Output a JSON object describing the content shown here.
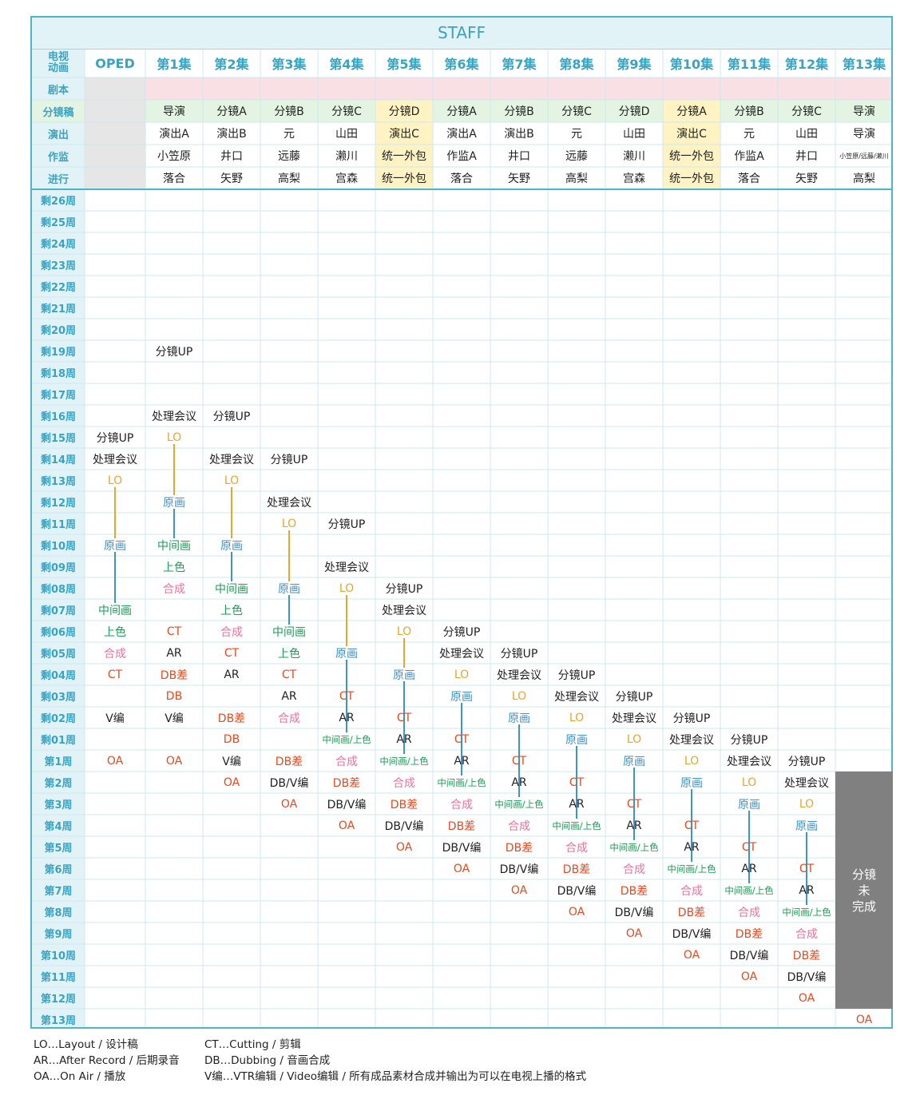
{
  "title": "STAFF",
  "corner": [
    "电视",
    "动画"
  ],
  "columns": [
    "OPED",
    "第1集",
    "第2集",
    "第3集",
    "第4集",
    "第5集",
    "第6集",
    "第7集",
    "第8集",
    "第9集",
    "第10集",
    "第11集",
    "第12集",
    "第13集"
  ],
  "info_rows": [
    {
      "label": "剧本",
      "cells": [
        "",
        "",
        "",
        "",
        "",
        "",
        "",
        "",
        "",
        "",
        "",
        "",
        "",
        ""
      ]
    },
    {
      "label": "分镜稿",
      "cells": [
        "",
        "导演",
        "分镜A",
        "分镜B",
        "分镜C",
        "分镜D",
        "分镜A",
        "分镜B",
        "分镜C",
        "分镜D",
        "分镜A",
        "分镜B",
        "分镜C",
        "导演"
      ]
    },
    {
      "label": "演出",
      "cells": [
        "",
        "演出A",
        "演出B",
        "元",
        "山田",
        "演出C",
        "演出A",
        "演出B",
        "元",
        "山田",
        "演出C",
        "元",
        "山田",
        "导演"
      ]
    },
    {
      "label": "作监",
      "cells": [
        "",
        "小笠原",
        "井口",
        "远藤",
        "濑川",
        "统一外包",
        "作监A",
        "井口",
        "远藤",
        "濑川",
        "统一外包",
        "作监A",
        "井口",
        "小笠原/远藤/濑川"
      ]
    },
    {
      "label": "进行",
      "cells": [
        "",
        "落合",
        "矢野",
        "高梨",
        "宫森",
        "统一外包",
        "落合",
        "矢野",
        "高梨",
        "宫森",
        "统一外包",
        "落合",
        "矢野",
        "高梨"
      ]
    }
  ],
  "weeks": [
    "剩26周",
    "剩25周",
    "剩24周",
    "剩23周",
    "剩22周",
    "剩21周",
    "剩20周",
    "剩19周",
    "剩18周",
    "剩17周",
    "剩16周",
    "剩15周",
    "剩14周",
    "剩13周",
    "剩12周",
    "剩11周",
    "剩10周",
    "剩09周",
    "剩08周",
    "剩07周",
    "剩06周",
    "剩05周",
    "剩04周",
    "剩03周",
    "剩02周",
    "剩01周",
    "第1周",
    "第2周",
    "第3周",
    "第4周",
    "第5周",
    "第6周",
    "第7周",
    "第8周",
    "第9周",
    "第10周",
    "第11周",
    "第12周",
    "第13周"
  ],
  "schedule": [
    {
      "col": 0,
      "marks": [
        [
          11,
          "分镜UP"
        ],
        [
          12,
          "处理会议"
        ],
        [
          13,
          "LO"
        ],
        [
          16,
          "原画"
        ],
        [
          19,
          "中间画"
        ],
        [
          20,
          "上色"
        ],
        [
          21,
          "合成"
        ],
        [
          22,
          "CT"
        ],
        [
          24,
          "V编"
        ],
        [
          26,
          "OA"
        ]
      ]
    },
    {
      "col": 1,
      "marks": [
        [
          7,
          "分镜UP"
        ],
        [
          10,
          "处理会议"
        ],
        [
          11,
          "LO"
        ],
        [
          14,
          "原画"
        ],
        [
          16,
          "中间画"
        ],
        [
          17,
          "上色"
        ],
        [
          18,
          "合成"
        ],
        [
          20,
          "CT"
        ],
        [
          21,
          "AR"
        ],
        [
          22,
          "DB差"
        ],
        [
          23,
          "DB"
        ],
        [
          24,
          "V编"
        ],
        [
          26,
          "OA"
        ]
      ]
    },
    {
      "col": 2,
      "marks": [
        [
          10,
          "分镜UP"
        ],
        [
          12,
          "处理会议"
        ],
        [
          13,
          "LO"
        ],
        [
          16,
          "原画"
        ],
        [
          18,
          "中间画"
        ],
        [
          19,
          "上色"
        ],
        [
          20,
          "合成"
        ],
        [
          21,
          "CT"
        ],
        [
          22,
          "AR"
        ],
        [
          24,
          "DB差"
        ],
        [
          25,
          "DB"
        ],
        [
          26,
          "V编"
        ],
        [
          27,
          "OA"
        ]
      ]
    },
    {
      "col": 3,
      "marks": [
        [
          12,
          "分镜UP"
        ],
        [
          14,
          "处理会议"
        ],
        [
          15,
          "LO"
        ],
        [
          18,
          "原画"
        ],
        [
          20,
          "中间画"
        ],
        [
          21,
          "上色"
        ],
        [
          22,
          "CT"
        ],
        [
          23,
          "AR"
        ],
        [
          24,
          "合成"
        ],
        [
          26,
          "DB差"
        ],
        [
          27,
          "DB/V编"
        ],
        [
          28,
          "OA"
        ]
      ]
    },
    {
      "col": 4,
      "marks": [
        [
          15,
          "分镜UP"
        ],
        [
          17,
          "处理会议"
        ],
        [
          18,
          "LO"
        ],
        [
          21,
          "原画"
        ],
        [
          23,
          "CT"
        ],
        [
          24,
          "AR"
        ],
        [
          25,
          "中间画/上色"
        ],
        [
          26,
          "合成"
        ],
        [
          27,
          "DB差"
        ],
        [
          28,
          "DB/V编"
        ],
        [
          29,
          "OA"
        ]
      ]
    },
    {
      "col": 5,
      "marks": [
        [
          18,
          "分镜UP"
        ],
        [
          19,
          "处理会议"
        ],
        [
          20,
          "LO"
        ],
        [
          22,
          "原画"
        ],
        [
          24,
          "CT"
        ],
        [
          25,
          "AR"
        ],
        [
          26,
          "中间画/上色"
        ],
        [
          27,
          "合成"
        ],
        [
          28,
          "DB差"
        ],
        [
          29,
          "DB/V编"
        ],
        [
          30,
          "OA"
        ]
      ]
    },
    {
      "col": 6,
      "marks": [
        [
          20,
          "分镜UP"
        ],
        [
          21,
          "处理会议"
        ],
        [
          22,
          "LO"
        ],
        [
          23,
          "原画"
        ],
        [
          25,
          "CT"
        ],
        [
          26,
          "AR"
        ],
        [
          27,
          "中间画/上色"
        ],
        [
          28,
          "合成"
        ],
        [
          29,
          "DB差"
        ],
        [
          30,
          "DB/V编"
        ],
        [
          31,
          "OA"
        ]
      ]
    },
    {
      "col": 7,
      "marks": [
        [
          21,
          "分镜UP"
        ],
        [
          22,
          "处理会议"
        ],
        [
          23,
          "LO"
        ],
        [
          24,
          "原画"
        ],
        [
          26,
          "CT"
        ],
        [
          27,
          "AR"
        ],
        [
          28,
          "中间画/上色"
        ],
        [
          29,
          "合成"
        ],
        [
          30,
          "DB差"
        ],
        [
          31,
          "DB/V编"
        ],
        [
          32,
          "OA"
        ]
      ]
    },
    {
      "col": 8,
      "marks": [
        [
          22,
          "分镜UP"
        ],
        [
          23,
          "处理会议"
        ],
        [
          24,
          "LO"
        ],
        [
          25,
          "原画"
        ],
        [
          27,
          "CT"
        ],
        [
          28,
          "AR"
        ],
        [
          29,
          "中间画/上色"
        ],
        [
          30,
          "合成"
        ],
        [
          31,
          "DB差"
        ],
        [
          32,
          "DB/V编"
        ],
        [
          33,
          "OA"
        ]
      ]
    },
    {
      "col": 9,
      "marks": [
        [
          23,
          "分镜UP"
        ],
        [
          24,
          "处理会议"
        ],
        [
          25,
          "LO"
        ],
        [
          26,
          "原画"
        ],
        [
          28,
          "CT"
        ],
        [
          29,
          "AR"
        ],
        [
          30,
          "中间画/上色"
        ],
        [
          31,
          "合成"
        ],
        [
          32,
          "DB差"
        ],
        [
          33,
          "DB/V编"
        ],
        [
          34,
          "OA"
        ]
      ]
    },
    {
      "col": 10,
      "marks": [
        [
          24,
          "分镜UP"
        ],
        [
          25,
          "处理会议"
        ],
        [
          26,
          "LO"
        ],
        [
          27,
          "原画"
        ],
        [
          29,
          "CT"
        ],
        [
          30,
          "AR"
        ],
        [
          31,
          "中间画/上色"
        ],
        [
          32,
          "合成"
        ],
        [
          33,
          "DB差"
        ],
        [
          34,
          "DB/V编"
        ],
        [
          35,
          "OA"
        ]
      ]
    },
    {
      "col": 11,
      "marks": [
        [
          25,
          "分镜UP"
        ],
        [
          26,
          "处理会议"
        ],
        [
          27,
          "LO"
        ],
        [
          28,
          "原画"
        ],
        [
          30,
          "CT"
        ],
        [
          31,
          "AR"
        ],
        [
          32,
          "中间画/上色"
        ],
        [
          33,
          "合成"
        ],
        [
          34,
          "DB差"
        ],
        [
          35,
          "DB/V编"
        ],
        [
          36,
          "OA"
        ]
      ]
    },
    {
      "col": 12,
      "marks": [
        [
          26,
          "分镜UP"
        ],
        [
          27,
          "处理会议"
        ],
        [
          28,
          "LO"
        ],
        [
          29,
          "原画"
        ],
        [
          31,
          "CT"
        ],
        [
          32,
          "AR"
        ],
        [
          33,
          "中间画/上色"
        ],
        [
          34,
          "合成"
        ],
        [
          35,
          "DB差"
        ],
        [
          36,
          "DB/V编"
        ],
        [
          37,
          "OA"
        ]
      ]
    },
    {
      "col": 13,
      "marks": [
        [
          38,
          "OA"
        ]
      ]
    }
  ],
  "pending_note": "分镜未完成",
  "connectors": [
    {
      "col": 0,
      "color": "#e8a62a",
      "from": 13,
      "to": 16
    },
    {
      "col": 0,
      "color": "#3f93c6",
      "from": 16,
      "to": 19
    },
    {
      "col": 1,
      "color": "#e8a62a",
      "from": 11,
      "to": 14
    },
    {
      "col": 1,
      "color": "#3f93c6",
      "from": 14,
      "to": 16
    },
    {
      "col": 2,
      "color": "#e8a62a",
      "from": 13,
      "to": 16
    },
    {
      "col": 2,
      "color": "#3f93c6",
      "from": 16,
      "to": 18
    },
    {
      "col": 3,
      "color": "#e8a62a",
      "from": 15,
      "to": 18
    },
    {
      "col": 3,
      "color": "#3f93c6",
      "from": 18,
      "to": 20
    },
    {
      "col": 4,
      "color": "#e8a62a",
      "from": 18,
      "to": 21
    },
    {
      "col": 4,
      "color": "#3f93c6",
      "from": 21,
      "to": 25
    },
    {
      "col": 5,
      "color": "#e8a62a",
      "from": 20,
      "to": 22
    },
    {
      "col": 5,
      "color": "#3f93c6",
      "from": 22,
      "to": 26
    },
    {
      "col": 6,
      "color": "#3f93c6",
      "from": 23,
      "to": 27
    },
    {
      "col": 7,
      "color": "#3f93c6",
      "from": 24,
      "to": 28
    },
    {
      "col": 8,
      "color": "#3f93c6",
      "from": 25,
      "to": 29
    },
    {
      "col": 9,
      "color": "#3f93c6",
      "from": 26,
      "to": 30
    },
    {
      "col": 10,
      "color": "#3f93c6",
      "from": 27,
      "to": 31
    },
    {
      "col": 11,
      "color": "#3f93c6",
      "from": 28,
      "to": 32
    },
    {
      "col": 12,
      "color": "#3f93c6",
      "from": 29,
      "to": 33
    }
  ],
  "mark_colors": {
    "LO": "#e8a62a",
    "原画": "#3f93c6",
    "中间画": "#1a9e55",
    "上色": "#1a9e55",
    "中间画/上色": "#1a9e55",
    "合成": "#e8749a",
    "CT": "#e8491d",
    "DB差": "#e8491d",
    "DB": "#e8491d",
    "OA": "#e8491d"
  },
  "colors": {
    "border": "#4fb3c9",
    "grid": "#cde7ef",
    "header_bg": "#e2f3f8",
    "accent": "#3aa3c2",
    "script_row": "#f9e0e4",
    "storyboard_row": "#e4f4e2",
    "highlight_col": "#fff3c4",
    "gray_cell": "#e6e6e6"
  },
  "legend": [
    "LO…Layout / 设计稿",
    "AR…After Record / 后期录音",
    "OA…On Air / 播放",
    "CT…Cutting / 剪辑",
    "DB…Dubbing / 音画合成",
    "V编…VTR编辑 / Video编辑 / 所有成品素材合成并输出为可以在电视上播的格式"
  ]
}
